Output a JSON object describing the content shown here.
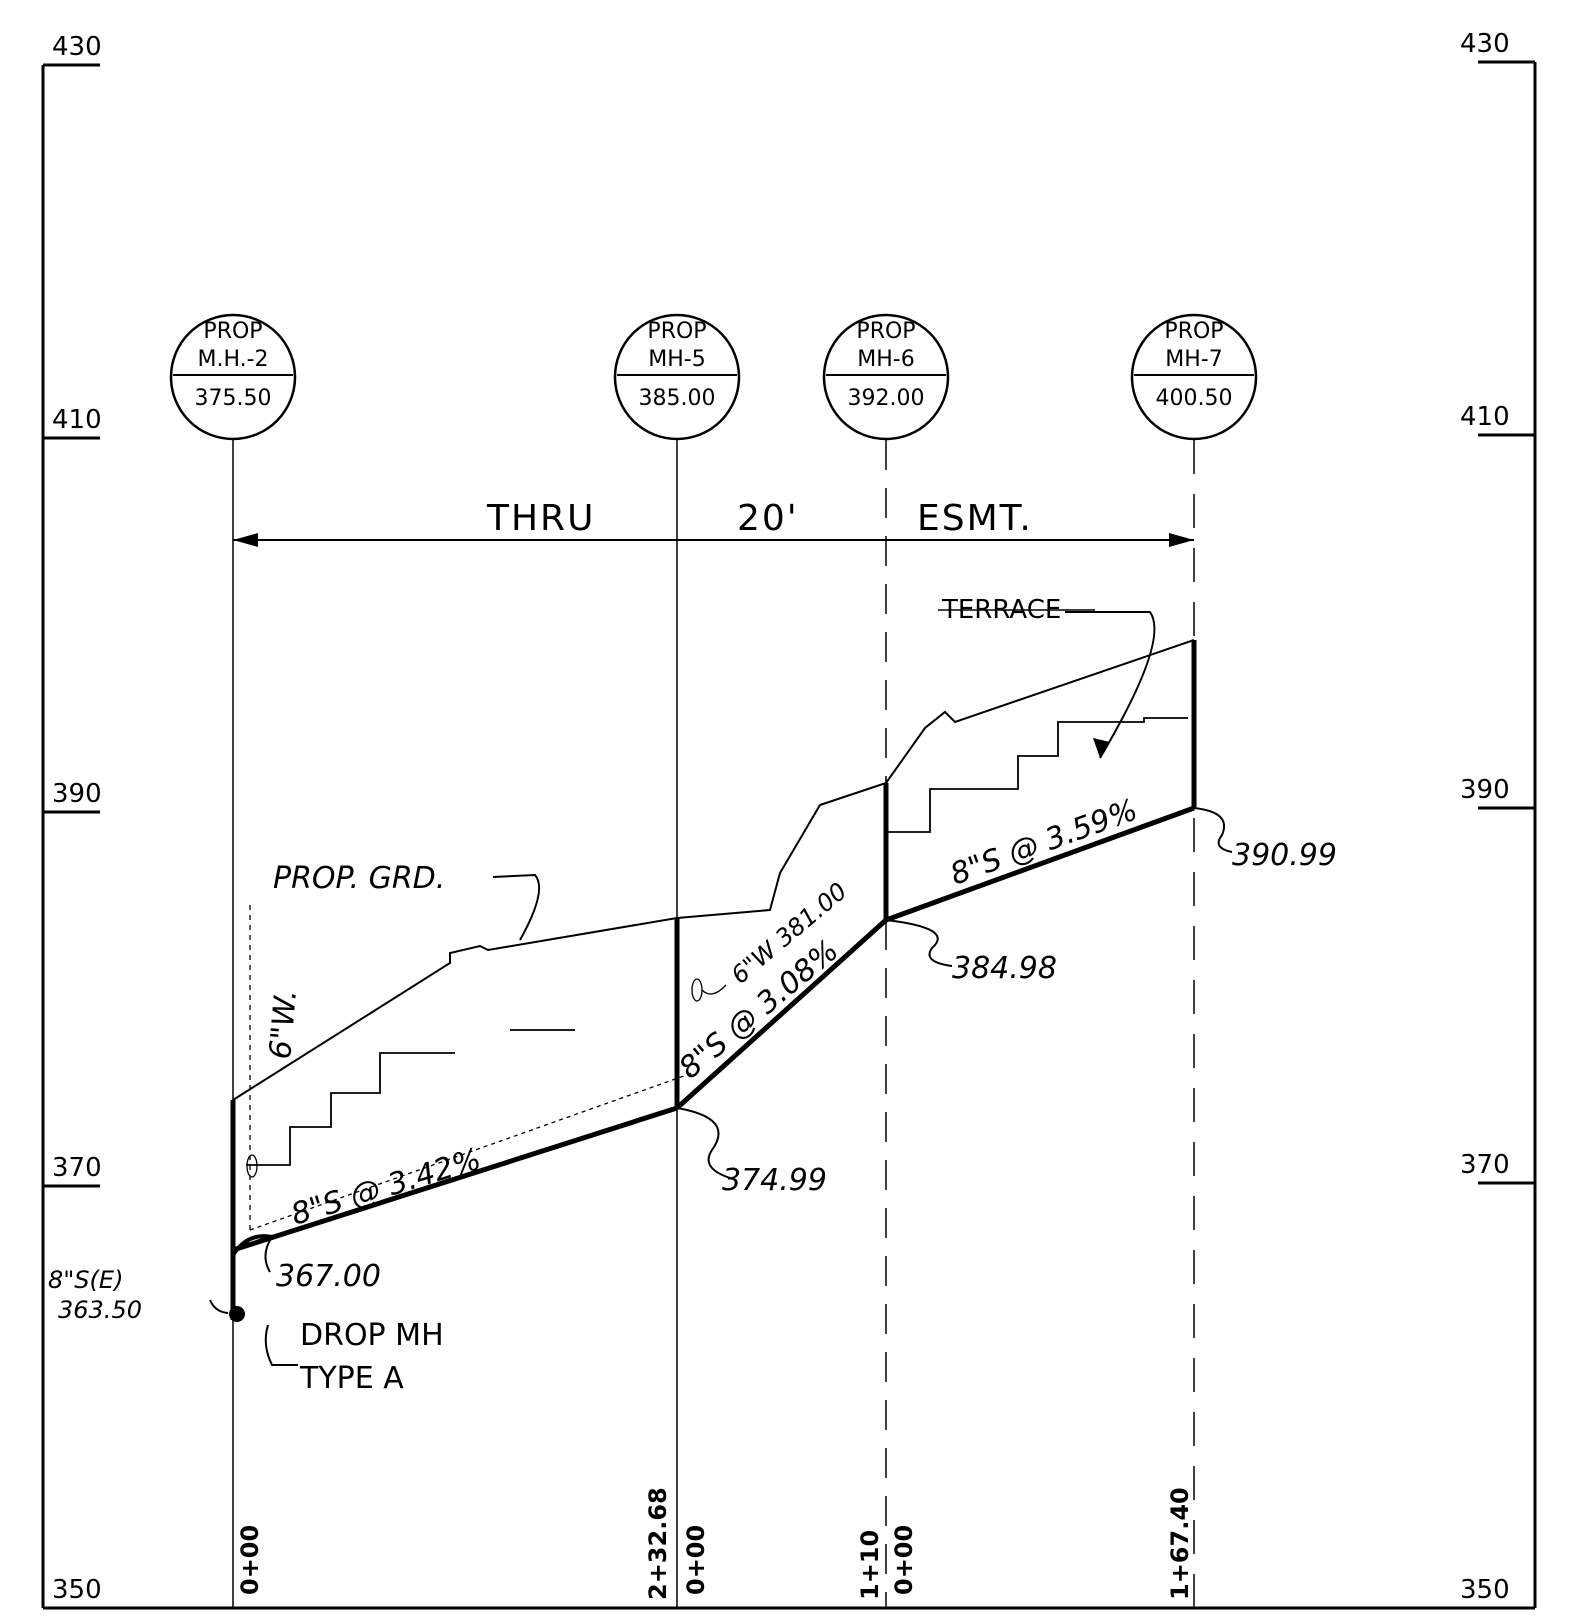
{
  "elevations": {
    "left": [
      "430",
      "410",
      "390",
      "370",
      "350"
    ],
    "right": [
      "430",
      "410",
      "390",
      "370",
      "350"
    ]
  },
  "manholes": [
    {
      "top": "PROP",
      "name": "M.H.-2",
      "elev": "375.50"
    },
    {
      "top": "PROP",
      "name": "MH-5",
      "elev": "385.00"
    },
    {
      "top": "PROP",
      "name": "MH-6",
      "elev": "392.00"
    },
    {
      "top": "PROP",
      "name": "MH-7",
      "elev": "400.50"
    }
  ],
  "easement": {
    "w1": "THRU",
    "w2": "20'",
    "w3": "ESMT."
  },
  "labels": {
    "terrace": "TERRACE",
    "prop_grd": "PROP. GRD.",
    "water_left": "6\"W.",
    "water_mid": "6\"W 381.00",
    "existing_pipe": "8\"S(E)",
    "existing_elev": "363.50",
    "drop_mh_1": "DROP MH",
    "drop_mh_2": "TYPE A"
  },
  "pipes": [
    {
      "label": "8\"S @ 3.42%"
    },
    {
      "label": "8\"S @ 3.08%"
    },
    {
      "label": "8\"S @ 3.59%"
    }
  ],
  "inverts": [
    "367.00",
    "374.99",
    "384.98",
    "390.99"
  ],
  "stations": [
    "0+00",
    "2+32.68",
    "0+00",
    "1+10",
    "0+00",
    "1+67.40"
  ]
}
